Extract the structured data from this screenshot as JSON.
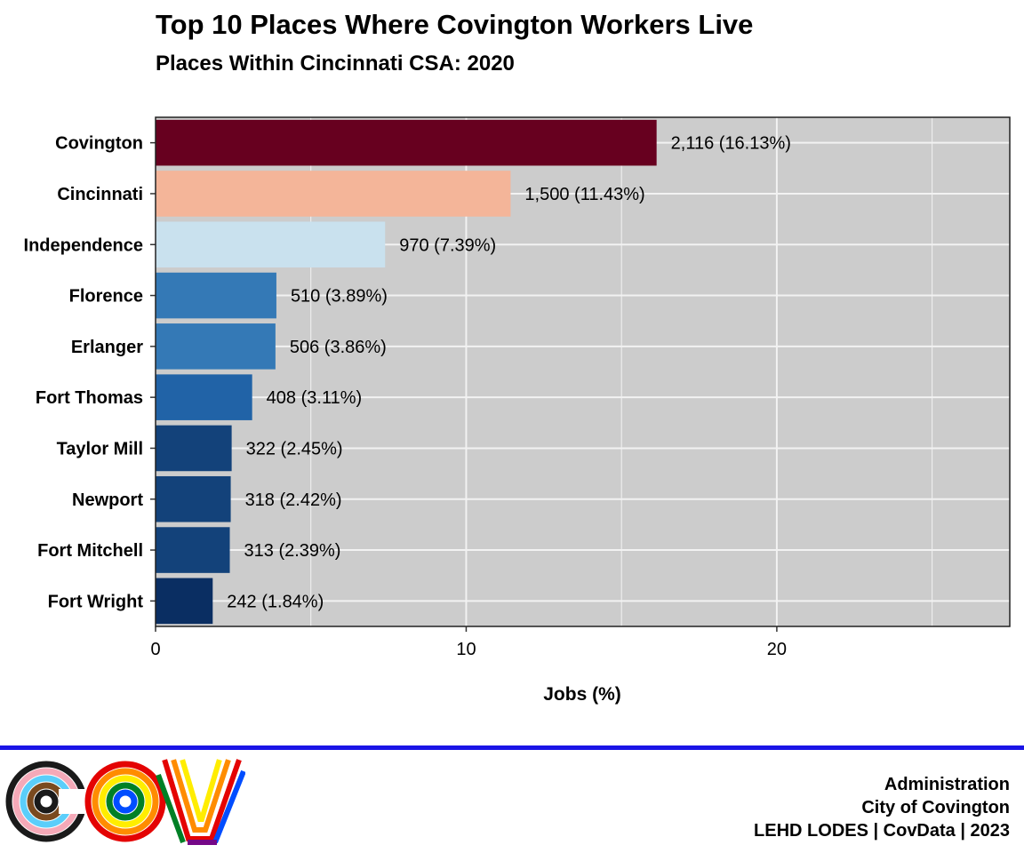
{
  "chart_data": {
    "type": "bar",
    "orientation": "horizontal",
    "title": "Top 10 Places Where Covington Workers Live",
    "subtitle": "Places Within Cincinnati CSA: 2020",
    "xlabel": "Jobs (%)",
    "ylabel": "",
    "xlim": [
      0,
      27.5
    ],
    "xticks": [
      0,
      10,
      20
    ],
    "grid": true,
    "categories": [
      "Covington",
      "Cincinnati",
      "Independence",
      "Florence",
      "Erlanger",
      "Fort Thomas",
      "Taylor Mill",
      "Newport",
      "Fort Mitchell",
      "Fort Wright"
    ],
    "values": [
      16.13,
      11.43,
      7.39,
      3.89,
      3.86,
      3.11,
      2.45,
      2.42,
      2.39,
      1.84
    ],
    "counts": [
      2116,
      1500,
      970,
      510,
      506,
      408,
      322,
      318,
      313,
      242
    ],
    "data_labels": [
      "2,116 (16.13%)",
      "1,500 (11.43%)",
      "970 (7.39%)",
      "510 (3.89%)",
      "506 (3.86%)",
      "408 (3.11%)",
      "322 (2.45%)",
      "318 (2.42%)",
      "313 (2.39%)",
      "242 (1.84%)"
    ],
    "colors": [
      "#67001f",
      "#f4b599",
      "#c9e1ee",
      "#3479b6",
      "#3479b6",
      "#2163a7",
      "#13427a",
      "#13427a",
      "#13427a",
      "#0a2e62"
    ],
    "panel_background": "#cccccc",
    "gridline_color": "#f2f2f2"
  },
  "footer": {
    "line1": "Administration",
    "line2": "City of Covington",
    "line3": "LEHD LODES | CovData | 2023"
  },
  "branding": {
    "logo_text": "COV",
    "divider_color": "#1a14e6"
  }
}
